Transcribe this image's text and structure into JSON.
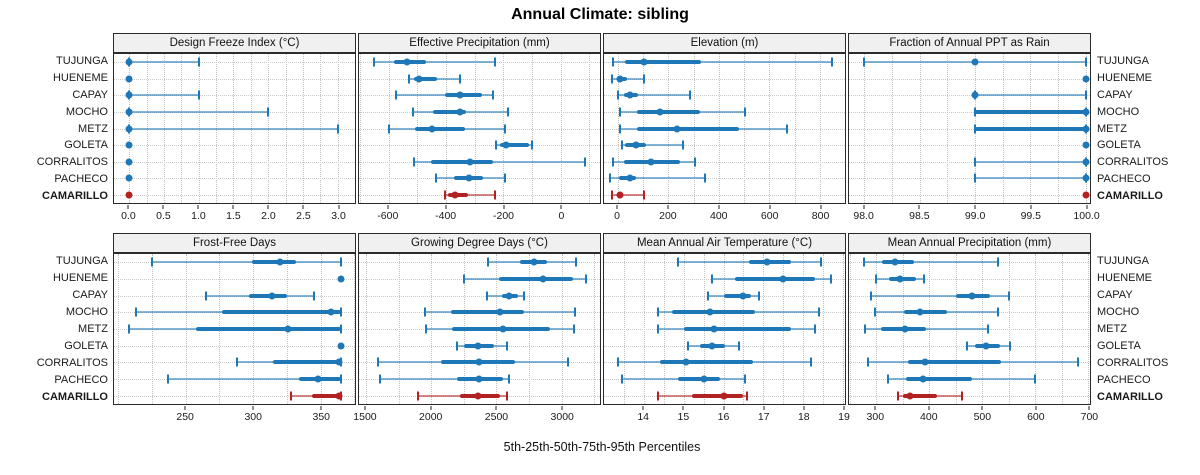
{
  "title": "Annual Climate: sibling",
  "footer": "5th-25th-50th-75th-95th Percentiles",
  "colors": {
    "series": "#1e78b8",
    "highlight": "#b22222",
    "grid": "#c3c3c3",
    "strip_bg": "#f0f0f0",
    "border": "#2b2b2b"
  },
  "row_labels": [
    "TUJUNGA",
    "HUENEME",
    "CAPAY",
    "MOCHO",
    "METZ",
    "GOLETA",
    "CORRALITOS",
    "PACHECO",
    "CAMARILLO"
  ],
  "highlight_row": "CAMARILLO",
  "chart_data": {
    "type": "dot-whisker-percentile-trellis",
    "percentiles": [
      5,
      25,
      50,
      75,
      95
    ],
    "legend_note": "5th-25th-50th-75th-95th Percentiles",
    "grid": "dotted, vertical lines at half-tick steps, horizontal line per row",
    "rows": [
      "TUJUNGA",
      "HUENEME",
      "CAPAY",
      "MOCHO",
      "METZ",
      "GOLETA",
      "CORRALITOS",
      "PACHECO",
      "CAMARILLO"
    ],
    "panels": [
      {
        "title": "Design Freeze Index (°C)",
        "xlim": [
          -0.22,
          3.25
        ],
        "ticks": [
          {
            "v": 0,
            "label": "0.0"
          },
          {
            "v": 0.5,
            "label": "0.5"
          },
          {
            "v": 1,
            "label": "1.0"
          },
          {
            "v": 1.5,
            "label": "1.5"
          },
          {
            "v": 2,
            "label": "2.0"
          },
          {
            "v": 2.5,
            "label": "2.5"
          },
          {
            "v": 3,
            "label": "3.0"
          }
        ],
        "values": [
          [
            0,
            0,
            0,
            0,
            1
          ],
          [
            0,
            0,
            0,
            0,
            0
          ],
          [
            0,
            0,
            0,
            0,
            1
          ],
          [
            0,
            0,
            0,
            0,
            2
          ],
          [
            0,
            0,
            0,
            0,
            3
          ],
          [
            0,
            0,
            0,
            0,
            0
          ],
          [
            0,
            0,
            0,
            0,
            0
          ],
          [
            0,
            0,
            0,
            0,
            0
          ],
          [
            0,
            0,
            0,
            0,
            0
          ]
        ]
      },
      {
        "title": "Effective Precipitation (mm)",
        "xlim": [
          -703,
          137
        ],
        "ticks": [
          {
            "v": -600,
            "label": "-600"
          },
          {
            "v": -400,
            "label": "-400"
          },
          {
            "v": -200,
            "label": "-200"
          },
          {
            "v": 0,
            "label": "0"
          }
        ],
        "values": [
          [
            -650,
            -580,
            -535,
            -470,
            -230
          ],
          [
            -530,
            -512,
            -495,
            -430,
            -350
          ],
          [
            -575,
            -405,
            -350,
            -275,
            -235
          ],
          [
            -515,
            -445,
            -352,
            -330,
            -185
          ],
          [
            -600,
            -508,
            -450,
            -332,
            -195
          ],
          [
            -225,
            -210,
            -190,
            -110,
            -100
          ],
          [
            -510,
            -453,
            -315,
            -237,
            85
          ],
          [
            -435,
            -373,
            -320,
            -271,
            -195
          ],
          [
            -405,
            -393,
            -370,
            -322,
            -230
          ]
        ]
      },
      {
        "title": "Elevation (m)",
        "xlim": [
          -55,
          900
        ],
        "ticks": [
          {
            "v": 0,
            "label": "0"
          },
          {
            "v": 200,
            "label": "200"
          },
          {
            "v": 400,
            "label": "400"
          },
          {
            "v": 600,
            "label": "600"
          },
          {
            "v": 800,
            "label": "800"
          }
        ],
        "values": [
          [
            -20,
            30,
            105,
            330,
            850
          ],
          [
            -25,
            0,
            10,
            35,
            105
          ],
          [
            0,
            25,
            50,
            80,
            285
          ],
          [
            10,
            75,
            165,
            325,
            505
          ],
          [
            10,
            75,
            235,
            480,
            670
          ],
          [
            15,
            30,
            70,
            110,
            260
          ],
          [
            -20,
            25,
            130,
            245,
            305
          ],
          [
            -30,
            5,
            50,
            70,
            345
          ],
          [
            -25,
            0,
            10,
            20,
            105
          ]
        ]
      },
      {
        "title": "Fraction of Annual PPT as Rain",
        "xlim": [
          97.86,
          100.04
        ],
        "ticks": [
          {
            "v": 98,
            "label": "98.0"
          },
          {
            "v": 98.5,
            "label": "98.5"
          },
          {
            "v": 99,
            "label": "99.0"
          },
          {
            "v": 99.5,
            "label": "99.5"
          },
          {
            "v": 100,
            "label": "100.0"
          }
        ],
        "values": [
          [
            98,
            99,
            99,
            99,
            100
          ],
          [
            100,
            100,
            100,
            100,
            100
          ],
          [
            99,
            99,
            99,
            99,
            100
          ],
          [
            99,
            99,
            100,
            100,
            100
          ],
          [
            99,
            99,
            100,
            100,
            100
          ],
          [
            100,
            100,
            100,
            100,
            100
          ],
          [
            99,
            100,
            100,
            100,
            100
          ],
          [
            99,
            100,
            100,
            100,
            100
          ],
          [
            100,
            100,
            100,
            100,
            100
          ]
        ]
      },
      {
        "title": "Frost-Free Days",
        "xlim": [
          197,
          375.5
        ],
        "ticks": [
          {
            "v": 250,
            "label": "250"
          },
          {
            "v": 300,
            "label": "300"
          },
          {
            "v": 350,
            "label": "350"
          }
        ],
        "values": [
          [
            225,
            299,
            320,
            332,
            365
          ],
          [
            365,
            365,
            365,
            365,
            365
          ],
          [
            265,
            297,
            314,
            325,
            345
          ],
          [
            213,
            277,
            358,
            365,
            365
          ],
          [
            208,
            258,
            326,
            365,
            365
          ],
          [
            365,
            365,
            365,
            365,
            365
          ],
          [
            288,
            315,
            364,
            365,
            365
          ],
          [
            237,
            334,
            348,
            365,
            365
          ],
          [
            328,
            344,
            364,
            365,
            365
          ]
        ]
      },
      {
        "title": "Growing Degree Days (°C)",
        "xlim": [
          1447,
          3295
        ],
        "ticks": [
          {
            "v": 1500,
            "label": "1500"
          },
          {
            "v": 2000,
            "label": "2000"
          },
          {
            "v": 2500,
            "label": "2500"
          },
          {
            "v": 3000,
            "label": "3000"
          }
        ],
        "values": [
          [
            2440,
            2680,
            2790,
            2890,
            3110
          ],
          [
            2250,
            2520,
            2860,
            3090,
            3190
          ],
          [
            2430,
            2545,
            2600,
            2670,
            2710
          ],
          [
            1950,
            2150,
            2525,
            2710,
            3100
          ],
          [
            1960,
            2160,
            2550,
            2915,
            3095
          ],
          [
            2200,
            2250,
            2360,
            2480,
            2580
          ],
          [
            1590,
            2075,
            2365,
            2640,
            3050
          ],
          [
            1610,
            2200,
            2370,
            2550,
            2600
          ],
          [
            1900,
            2220,
            2360,
            2530,
            2580
          ]
        ]
      },
      {
        "title": "Mean Annual Air Temperature (°C)",
        "xlim": [
          13.0,
          19.05
        ],
        "ticks": [
          {
            "v": 14,
            "label": "14"
          },
          {
            "v": 15,
            "label": "15"
          },
          {
            "v": 16,
            "label": "16"
          },
          {
            "v": 17,
            "label": "17"
          },
          {
            "v": 18,
            "label": "18"
          },
          {
            "v": 19,
            "label": "19"
          }
        ],
        "values": [
          [
            14.85,
            16.65,
            17.1,
            17.7,
            18.45
          ],
          [
            15.7,
            16.3,
            17.5,
            18.3,
            18.7
          ],
          [
            15.6,
            16.0,
            16.5,
            16.7,
            16.9
          ],
          [
            14.35,
            14.7,
            15.65,
            16.8,
            18.4
          ],
          [
            14.35,
            15.0,
            15.75,
            17.7,
            18.3
          ],
          [
            15.1,
            15.4,
            15.7,
            16.05,
            16.4
          ],
          [
            13.35,
            14.4,
            15.05,
            16.75,
            18.2
          ],
          [
            13.45,
            14.85,
            15.5,
            15.9,
            16.55
          ],
          [
            14.35,
            15.2,
            16.0,
            16.5,
            16.6
          ]
        ]
      },
      {
        "title": "Mean Annual Precipitation (mm)",
        "xlim": [
          249,
          703
        ],
        "ticks": [
          {
            "v": 300,
            "label": "300"
          },
          {
            "v": 400,
            "label": "400"
          },
          {
            "v": 500,
            "label": "500"
          },
          {
            "v": 600,
            "label": "600"
          },
          {
            "v": 700,
            "label": "700"
          }
        ],
        "values": [
          [
            278,
            312,
            335,
            372,
            530
          ],
          [
            300,
            325,
            345,
            375,
            390
          ],
          [
            290,
            450,
            480,
            515,
            550
          ],
          [
            298,
            353,
            382,
            434,
            530
          ],
          [
            280,
            310,
            355,
            395,
            510
          ],
          [
            472,
            487,
            507,
            533,
            553
          ],
          [
            285,
            360,
            392,
            535,
            680
          ],
          [
            322,
            356,
            388,
            480,
            600
          ],
          [
            341,
            350,
            363,
            415,
            462
          ]
        ]
      }
    ]
  }
}
